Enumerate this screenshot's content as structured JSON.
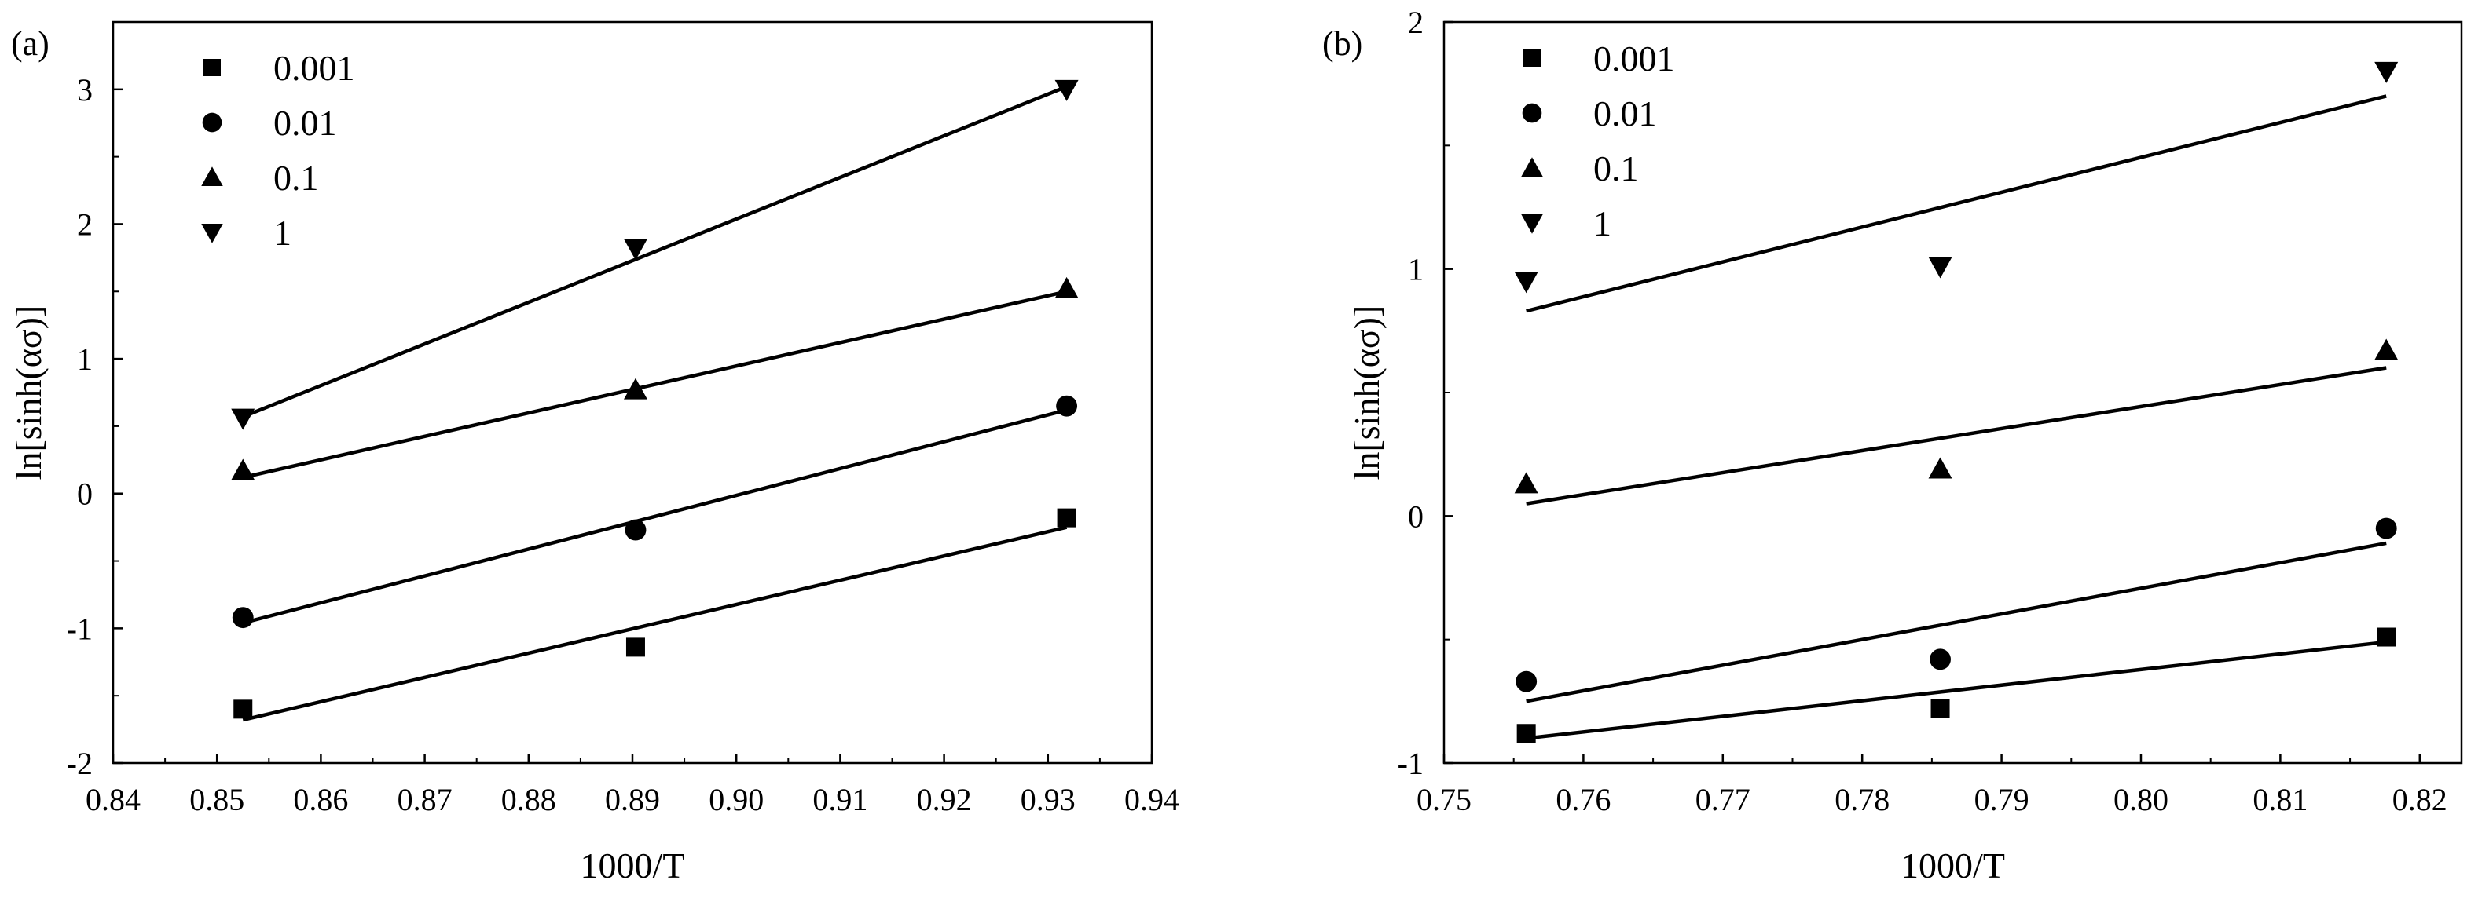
{
  "colors": {
    "ink": "#000000",
    "background": "#ffffff"
  },
  "chart_data": [
    {
      "type": "scatter",
      "panel_label": "(a)",
      "xlabel": "1000/T",
      "ylabel": "ln[sinh(ασ)]",
      "xlim": [
        0.84,
        0.94
      ],
      "ylim": [
        -2,
        3.5
      ],
      "xticks": [
        0.84,
        0.85,
        0.86,
        0.87,
        0.88,
        0.89,
        0.9,
        0.91,
        0.92,
        0.93,
        0.94
      ],
      "xtick_labels": [
        "0.84",
        "0.85",
        "0.86",
        "0.87",
        "0.88",
        "0.89",
        "0.90",
        "0.91",
        "0.92",
        "0.93",
        "0.94"
      ],
      "yticks": [
        -2,
        -1,
        0,
        1,
        2,
        3
      ],
      "ytick_labels": [
        "-2",
        "-1",
        "0",
        "1",
        "2",
        "3"
      ],
      "legend_position": "top-left",
      "series": [
        {
          "name": "0.001",
          "marker": "square",
          "x": [
            0.8525,
            0.8903,
            0.9318
          ],
          "y": [
            -1.6,
            -1.14,
            -0.18
          ],
          "fit": {
            "x": [
              0.8525,
              0.9318
            ],
            "y": [
              -1.68,
              -0.25
            ]
          }
        },
        {
          "name": "0.01",
          "marker": "circle",
          "x": [
            0.8525,
            0.8903,
            0.9318
          ],
          "y": [
            -0.92,
            -0.27,
            0.65
          ],
          "fit": {
            "x": [
              0.8525,
              0.9318
            ],
            "y": [
              -0.96,
              0.62
            ]
          }
        },
        {
          "name": "0.1",
          "marker": "triangle-up",
          "x": [
            0.8525,
            0.8903,
            0.9318
          ],
          "y": [
            0.17,
            0.77,
            1.52
          ],
          "fit": {
            "x": [
              0.8525,
              0.9318
            ],
            "y": [
              0.12,
              1.5
            ]
          }
        },
        {
          "name": "1",
          "marker": "triangle-down",
          "x": [
            0.8525,
            0.8903,
            0.9318
          ],
          "y": [
            0.56,
            1.82,
            3.0
          ],
          "fit": {
            "x": [
              0.8525,
              0.9318
            ],
            "y": [
              0.57,
              3.02
            ]
          }
        }
      ]
    },
    {
      "type": "scatter",
      "panel_label": "(b)",
      "xlabel": "1000/T",
      "ylabel": "ln[sinh(ασ)]",
      "xlim": [
        0.75,
        0.823
      ],
      "ylim": [
        -1,
        2
      ],
      "xticks": [
        0.75,
        0.76,
        0.77,
        0.78,
        0.79,
        0.8,
        0.81,
        0.82
      ],
      "xtick_labels": [
        "0.75",
        "0.76",
        "0.77",
        "0.78",
        "0.79",
        "0.80",
        "0.81",
        "0.82"
      ],
      "yticks": [
        -1,
        0,
        1,
        2
      ],
      "ytick_labels": [
        "-1",
        "0",
        "1",
        "2"
      ],
      "legend_position": "top-left",
      "series": [
        {
          "name": "0.001",
          "marker": "square",
          "x": [
            0.7559,
            0.7856,
            0.8176
          ],
          "y": [
            -0.88,
            -0.78,
            -0.49
          ],
          "fit": {
            "x": [
              0.7559,
              0.8176
            ],
            "y": [
              -0.9,
              -0.51
            ]
          }
        },
        {
          "name": "0.01",
          "marker": "circle",
          "x": [
            0.7559,
            0.7856,
            0.8176
          ],
          "y": [
            -0.67,
            -0.58,
            -0.05
          ],
          "fit": {
            "x": [
              0.7559,
              0.8176
            ],
            "y": [
              -0.75,
              -0.11
            ]
          }
        },
        {
          "name": "0.1",
          "marker": "triangle-up",
          "x": [
            0.7559,
            0.7856,
            0.8176
          ],
          "y": [
            0.13,
            0.19,
            0.67
          ],
          "fit": {
            "x": [
              0.7559,
              0.8176
            ],
            "y": [
              0.05,
              0.6
            ]
          }
        },
        {
          "name": "1",
          "marker": "triangle-down",
          "x": [
            0.7559,
            0.7856,
            0.8176
          ],
          "y": [
            0.95,
            1.01,
            1.8
          ],
          "fit": {
            "x": [
              0.7559,
              0.8176
            ],
            "y": [
              0.83,
              1.7
            ]
          }
        }
      ]
    }
  ]
}
